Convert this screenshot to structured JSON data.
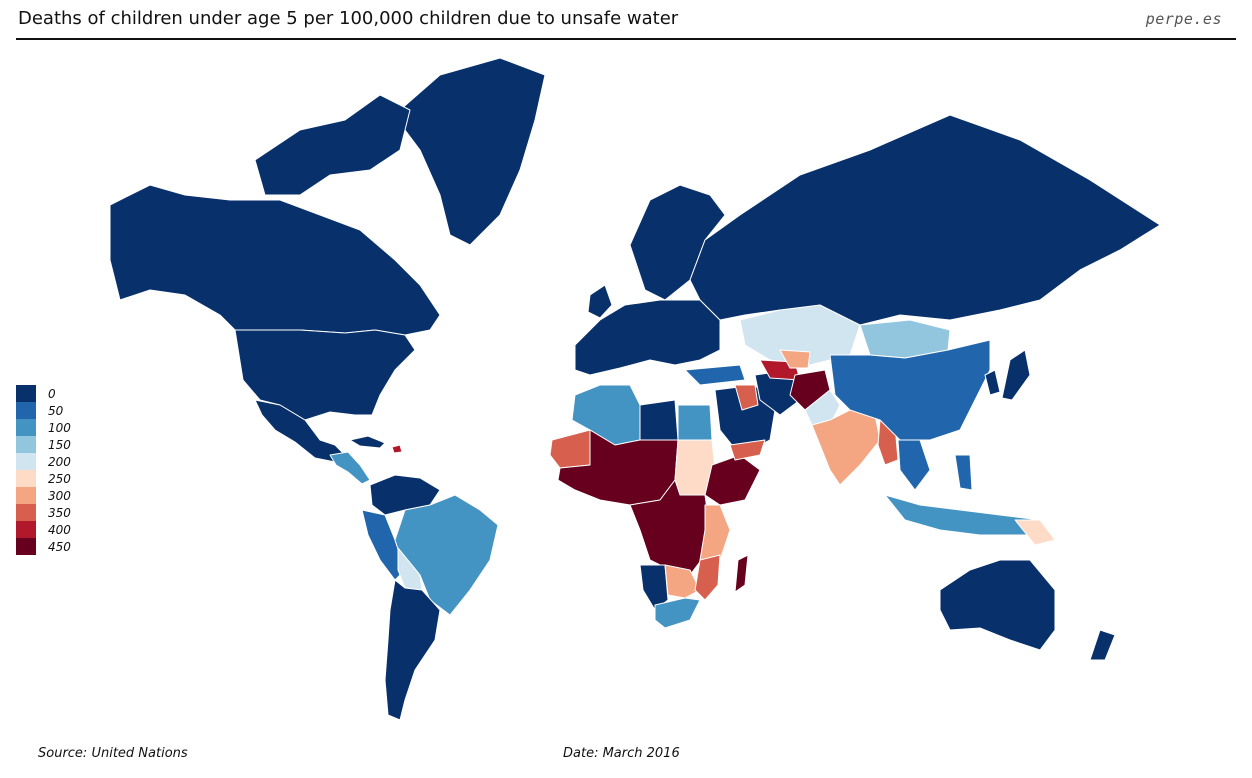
{
  "title": "Deaths of children under age 5 per 100,000 children due to unsafe water",
  "site": "perpe.es",
  "footer": {
    "source": "Source: United Nations",
    "date": "Date: March 2016"
  },
  "legend": [
    {
      "label": "0",
      "color": "#08306b"
    },
    {
      "label": "50",
      "color": "#2166ac"
    },
    {
      "label": "100",
      "color": "#4393c3"
    },
    {
      "label": "150",
      "color": "#92c5de"
    },
    {
      "label": "200",
      "color": "#d1e5f0"
    },
    {
      "label": "250",
      "color": "#fddbc7"
    },
    {
      "label": "300",
      "color": "#f4a582"
    },
    {
      "label": "350",
      "color": "#d6604d"
    },
    {
      "label": "400",
      "color": "#b2182b"
    },
    {
      "label": "450",
      "color": "#67001f"
    }
  ]
}
